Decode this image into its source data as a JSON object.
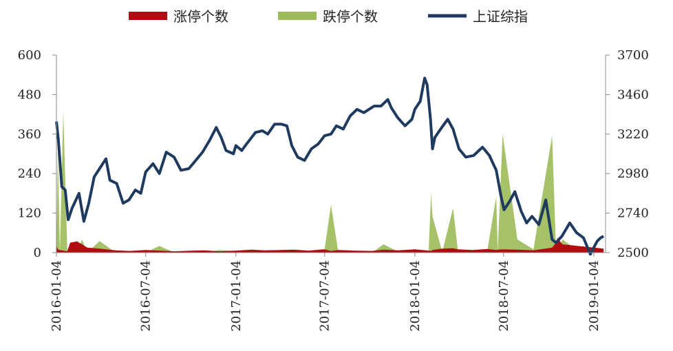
{
  "chart_data": {
    "type": "bar+line",
    "legend": [
      {
        "key": "limit_up",
        "label": "涨停个数",
        "color": "#b00d12",
        "kind": "area"
      },
      {
        "key": "limit_down",
        "label": "跌停个数",
        "color": "#9bbb59",
        "kind": "area"
      },
      {
        "key": "index",
        "label": "上证综指",
        "color": "#1f3a5f",
        "kind": "line"
      }
    ],
    "x_tick_labels": [
      "2016-01-04",
      "2016-07-04",
      "2017-01-04",
      "2017-07-04",
      "2018-01-04",
      "2018-07-04",
      "2019-01-04"
    ],
    "left_axis": {
      "ticks": [
        0,
        120,
        240,
        360,
        480,
        600
      ],
      "ylim": [
        0,
        600
      ]
    },
    "right_axis": {
      "ticks": [
        2500,
        2740,
        2980,
        3220,
        3460,
        3700
      ],
      "ylim": [
        2500,
        3700
      ]
    },
    "index_series": {
      "name": "上证综指",
      "dates": [
        "2016-01-04",
        "2016-01-08",
        "2016-01-15",
        "2016-01-22",
        "2016-01-28",
        "2016-02-05",
        "2016-02-19",
        "2016-02-29",
        "2016-03-10",
        "2016-03-21",
        "2016-04-01",
        "2016-04-14",
        "2016-04-22",
        "2016-05-06",
        "2016-05-19",
        "2016-05-31",
        "2016-06-13",
        "2016-06-24",
        "2016-07-04",
        "2016-07-19",
        "2016-08-01",
        "2016-08-15",
        "2016-08-31",
        "2016-09-14",
        "2016-09-30",
        "2016-10-14",
        "2016-10-28",
        "2016-11-11",
        "2016-11-25",
        "2016-12-05",
        "2016-12-15",
        "2016-12-30",
        "2017-01-04",
        "2017-01-16",
        "2017-01-26",
        "2017-02-13",
        "2017-02-27",
        "2017-03-10",
        "2017-03-24",
        "2017-04-07",
        "2017-04-18",
        "2017-04-28",
        "2017-05-10",
        "2017-05-24",
        "2017-06-07",
        "2017-06-21",
        "2017-07-04",
        "2017-07-17",
        "2017-07-28",
        "2017-08-11",
        "2017-08-25",
        "2017-09-08",
        "2017-09-22",
        "2017-10-13",
        "2017-10-27",
        "2017-11-10",
        "2017-11-17",
        "2017-11-30",
        "2017-12-15",
        "2017-12-29",
        "2018-01-04",
        "2018-01-15",
        "2018-01-24",
        "2018-01-29",
        "2018-02-05",
        "2018-02-09",
        "2018-02-14",
        "2018-02-28",
        "2018-03-12",
        "2018-03-23",
        "2018-04-04",
        "2018-04-18",
        "2018-05-04",
        "2018-05-22",
        "2018-06-05",
        "2018-06-19",
        "2018-06-29",
        "2018-07-05",
        "2018-07-16",
        "2018-07-27",
        "2018-08-09",
        "2018-08-20",
        "2018-08-31",
        "2018-09-14",
        "2018-09-28",
        "2018-10-11",
        "2018-10-19",
        "2018-10-31",
        "2018-11-16",
        "2018-11-30",
        "2018-12-14",
        "2018-12-28",
        "2019-01-04",
        "2019-01-11",
        "2019-01-18",
        "2019-01-24"
      ],
      "values": [
        3296,
        3186,
        2900,
        2880,
        2700,
        2770,
        2860,
        2690,
        2800,
        2960,
        3010,
        3070,
        2940,
        2920,
        2800,
        2820,
        2880,
        2860,
        2990,
        3040,
        2980,
        3110,
        3080,
        3000,
        3010,
        3060,
        3110,
        3180,
        3260,
        3200,
        3120,
        3100,
        3150,
        3120,
        3160,
        3230,
        3240,
        3220,
        3280,
        3280,
        3270,
        3150,
        3080,
        3060,
        3130,
        3160,
        3210,
        3220,
        3270,
        3250,
        3330,
        3370,
        3350,
        3390,
        3390,
        3430,
        3380,
        3320,
        3270,
        3310,
        3370,
        3420,
        3560,
        3520,
        3310,
        3130,
        3200,
        3260,
        3310,
        3250,
        3130,
        3080,
        3090,
        3140,
        3090,
        3000,
        2840,
        2760,
        2810,
        2870,
        2750,
        2680,
        2720,
        2670,
        2820,
        2580,
        2560,
        2600,
        2680,
        2620,
        2590,
        2490,
        2530,
        2570,
        2590,
        2600
      ]
    },
    "count_series": {
      "dates": [
        "2016-01-04",
        "2016-01-07",
        "2016-01-11",
        "2016-01-18",
        "2016-01-26",
        "2016-02-01",
        "2016-02-15",
        "2016-02-25",
        "2016-03-07",
        "2016-04-01",
        "2016-05-04",
        "2016-06-01",
        "2016-07-04",
        "2016-08-01",
        "2016-09-01",
        "2016-10-10",
        "2016-11-01",
        "2016-12-01",
        "2017-01-04",
        "2017-02-06",
        "2017-03-01",
        "2017-04-05",
        "2017-05-02",
        "2017-06-01",
        "2017-07-03",
        "2017-07-17",
        "2017-08-01",
        "2017-09-01",
        "2017-10-09",
        "2017-11-01",
        "2017-12-01",
        "2018-01-04",
        "2018-02-01",
        "2018-02-06",
        "2018-02-09",
        "2018-03-01",
        "2018-03-23",
        "2018-04-02",
        "2018-05-02",
        "2018-06-01",
        "2018-06-19",
        "2018-06-22",
        "2018-07-02",
        "2018-08-01",
        "2018-09-03",
        "2018-10-11",
        "2018-10-19",
        "2018-10-22",
        "2018-11-01",
        "2018-12-03",
        "2019-01-04",
        "2019-01-24"
      ],
      "limit_up": [
        22,
        10,
        8,
        6,
        4,
        30,
        34,
        25,
        15,
        12,
        7,
        5,
        8,
        6,
        4,
        6,
        7,
        4,
        6,
        9,
        7,
        8,
        9,
        6,
        10,
        5,
        8,
        6,
        5,
        9,
        7,
        10,
        6,
        5,
        8,
        12,
        13,
        10,
        8,
        11,
        8,
        9,
        10,
        9,
        7,
        15,
        30,
        45,
        25,
        20,
        15,
        12
      ],
      "limit_down": [
        0,
        320,
        0,
        430,
        10,
        0,
        0,
        40,
        0,
        35,
        0,
        3,
        0,
        20,
        0,
        5,
        0,
        8,
        4,
        0,
        3,
        0,
        5,
        3,
        0,
        145,
        0,
        3,
        0,
        25,
        3,
        10,
        0,
        180,
        110,
        2,
        135,
        5,
        0,
        8,
        170,
        4,
        360,
        40,
        10,
        355,
        6,
        2,
        40,
        5,
        0,
        3
      ]
    }
  }
}
